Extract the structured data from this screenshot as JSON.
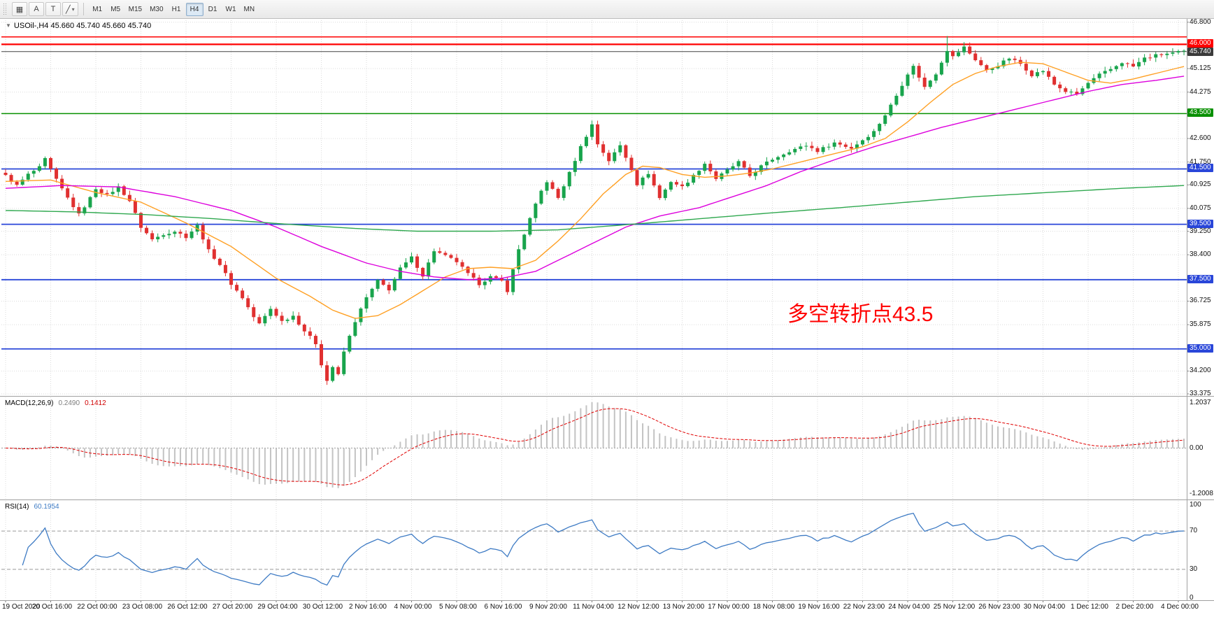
{
  "toolbar": {
    "tools": [
      {
        "id": "charts",
        "glyph": "▦"
      },
      {
        "id": "cursor",
        "glyph": "A"
      },
      {
        "id": "text",
        "glyph": "T"
      },
      {
        "id": "shapes",
        "glyph": "╱",
        "caret": "▾"
      }
    ],
    "timeframes": [
      "M1",
      "M5",
      "M15",
      "M30",
      "H1",
      "H4",
      "D1",
      "W1",
      "MN"
    ],
    "active_timeframe": "H4"
  },
  "main_chart": {
    "collapse_icon": "▼",
    "title_text": "USOil-,H4 45.660 45.740 45.660 45.740",
    "bid_label": "45.740",
    "annotation": {
      "text": "多空转折点43.5",
      "color": "#FF0000"
    }
  },
  "macd_panel": {
    "name": "MACD(12,26,9)",
    "value_main": "0.2490",
    "value_signal": "0.1412",
    "axis": [
      "1.2037",
      "0.00",
      "-1.2008"
    ]
  },
  "rsi_panel": {
    "name": "RSI(14)",
    "value": "60.1954",
    "axis": [
      "100",
      "70",
      "30",
      "0"
    ],
    "levels": [
      70,
      30
    ]
  },
  "time_axis": [
    "19 Oct 2020",
    "20 Oct 16:00",
    "22 Oct 00:00",
    "23 Oct 08:00",
    "26 Oct 12:00",
    "27 Oct 20:00",
    "29 Oct 04:00",
    "30 Oct 12:00",
    "2 Nov 16:00",
    "4 Nov 00:00",
    "5 Nov 08:00",
    "6 Nov 16:00",
    "9 Nov 20:00",
    "11 Nov 04:00",
    "12 Nov 12:00",
    "13 Nov 20:00",
    "17 Nov 00:00",
    "18 Nov 08:00",
    "19 Nov 16:00",
    "22 Nov 23:00",
    "24 Nov 04:00",
    "25 Nov 12:00",
    "26 Nov 23:00",
    "30 Nov 04:00",
    "1 Dec 12:00",
    "2 Dec 20:00",
    "4 Dec 00:00"
  ],
  "chart_data": {
    "type": "candlestick",
    "title": "USOil-,H4",
    "symbol": "USOil-",
    "timeframe": "H4",
    "ohlc_current": {
      "open": 45.66,
      "high": 45.74,
      "low": 45.66,
      "close": 45.74
    },
    "bars": 210,
    "ylim": [
      33.3,
      46.92
    ],
    "bid_price": 45.74,
    "price_gridlines": [
      "46.800",
      "45.125",
      "44.275",
      "42.600",
      "41.750",
      "40.925",
      "40.075",
      "39.250",
      "38.400",
      "36.725",
      "35.875",
      "34.200",
      "33.375"
    ],
    "hlines": [
      {
        "price": 46.27,
        "color": "#FF0000",
        "width": 1.5,
        "label": null
      },
      {
        "price": 46.0,
        "color": "#FF0000",
        "width": 2.2,
        "label": "46.000"
      },
      {
        "price": 43.5,
        "color": "#089000",
        "width": 1.5,
        "label": "43.500"
      },
      {
        "price": 41.5,
        "color": "#2946D9",
        "width": 1.8,
        "label": "41.500"
      },
      {
        "price": 39.5,
        "color": "#2946D9",
        "width": 1.8,
        "label": "39.500"
      },
      {
        "price": 37.5,
        "color": "#2946D9",
        "width": 1.8,
        "label": "37.500"
      },
      {
        "price": 35.0,
        "color": "#2946D9",
        "width": 1.8,
        "label": "35.000"
      }
    ],
    "close_anchors": [
      [
        0,
        41.25
      ],
      [
        2,
        40.9
      ],
      [
        4,
        41.3
      ],
      [
        6,
        41.55
      ],
      [
        7,
        41.85
      ],
      [
        9,
        41.1
      ],
      [
        11,
        40.45
      ],
      [
        13,
        39.85
      ],
      [
        15,
        40.45
      ],
      [
        16,
        40.8
      ],
      [
        18,
        40.55
      ],
      [
        20,
        40.85
      ],
      [
        22,
        40.35
      ],
      [
        24,
        39.4
      ],
      [
        26,
        38.95
      ],
      [
        28,
        39.15
      ],
      [
        30,
        39.25
      ],
      [
        32,
        39.05
      ],
      [
        34,
        39.45
      ],
      [
        36,
        38.55
      ],
      [
        38,
        38.05
      ],
      [
        40,
        37.35
      ],
      [
        42,
        36.85
      ],
      [
        44,
        36.15
      ],
      [
        45,
        35.9
      ],
      [
        47,
        36.45
      ],
      [
        49,
        36.0
      ],
      [
        51,
        36.2
      ],
      [
        53,
        35.65
      ],
      [
        55,
        35.2
      ],
      [
        56,
        34.45
      ],
      [
        57,
        33.85
      ],
      [
        58,
        34.35
      ],
      [
        59,
        34.05
      ],
      [
        60,
        34.9
      ],
      [
        62,
        36.0
      ],
      [
        64,
        36.85
      ],
      [
        66,
        37.45
      ],
      [
        68,
        37.15
      ],
      [
        70,
        37.9
      ],
      [
        72,
        38.3
      ],
      [
        74,
        37.65
      ],
      [
        76,
        38.55
      ],
      [
        78,
        38.35
      ],
      [
        80,
        38.15
      ],
      [
        82,
        37.7
      ],
      [
        84,
        37.35
      ],
      [
        86,
        37.6
      ],
      [
        88,
        37.45
      ],
      [
        89,
        37.1
      ],
      [
        91,
        38.6
      ],
      [
        93,
        39.7
      ],
      [
        95,
        40.7
      ],
      [
        96,
        41.05
      ],
      [
        98,
        40.45
      ],
      [
        100,
        41.35
      ],
      [
        102,
        42.3
      ],
      [
        104,
        43.1
      ],
      [
        105,
        42.4
      ],
      [
        107,
        41.8
      ],
      [
        109,
        42.35
      ],
      [
        111,
        41.5
      ],
      [
        112,
        40.95
      ],
      [
        114,
        41.35
      ],
      [
        116,
        40.45
      ],
      [
        118,
        41.05
      ],
      [
        120,
        40.85
      ],
      [
        122,
        41.25
      ],
      [
        124,
        41.7
      ],
      [
        126,
        41.15
      ],
      [
        128,
        41.45
      ],
      [
        130,
        41.75
      ],
      [
        132,
        41.25
      ],
      [
        134,
        41.6
      ],
      [
        136,
        41.85
      ],
      [
        139,
        42.15
      ],
      [
        142,
        42.35
      ],
      [
        144,
        42.15
      ],
      [
        147,
        42.45
      ],
      [
        150,
        42.25
      ],
      [
        152,
        42.55
      ],
      [
        154,
        42.85
      ],
      [
        156,
        43.45
      ],
      [
        158,
        44.15
      ],
      [
        160,
        44.95
      ],
      [
        161,
        45.2
      ],
      [
        163,
        44.45
      ],
      [
        165,
        44.95
      ],
      [
        167,
        45.8
      ],
      [
        168,
        45.55
      ],
      [
        170,
        45.9
      ],
      [
        172,
        45.45
      ],
      [
        174,
        45.05
      ],
      [
        176,
        45.25
      ],
      [
        178,
        45.5
      ],
      [
        180,
        45.3
      ],
      [
        182,
        44.9
      ],
      [
        184,
        45.05
      ],
      [
        186,
        44.55
      ],
      [
        188,
        44.3
      ],
      [
        190,
        44.2
      ],
      [
        192,
        44.6
      ],
      [
        194,
        44.9
      ],
      [
        196,
        45.1
      ],
      [
        198,
        45.35
      ],
      [
        200,
        45.2
      ],
      [
        202,
        45.5
      ],
      [
        204,
        45.6
      ],
      [
        206,
        45.66
      ],
      [
        209,
        45.74
      ]
    ],
    "spike_highs": [
      [
        7,
        41.95
      ],
      [
        104,
        43.25
      ],
      [
        161,
        45.3
      ],
      [
        167,
        46.3
      ],
      [
        170,
        46.05
      ]
    ],
    "spike_lows": [
      [
        57,
        33.7
      ],
      [
        89,
        36.95
      ]
    ],
    "ma_lines": [
      {
        "name": "ma-fast-orange",
        "color": "#FFA024",
        "anchors": [
          [
            0,
            41.05
          ],
          [
            8,
            41.1
          ],
          [
            16,
            40.65
          ],
          [
            24,
            40.3
          ],
          [
            32,
            39.55
          ],
          [
            40,
            38.7
          ],
          [
            48,
            37.55
          ],
          [
            54,
            36.9
          ],
          [
            58,
            36.4
          ],
          [
            62,
            36.1
          ],
          [
            66,
            36.2
          ],
          [
            70,
            36.6
          ],
          [
            74,
            37.1
          ],
          [
            78,
            37.6
          ],
          [
            82,
            37.9
          ],
          [
            86,
            37.95
          ],
          [
            90,
            37.9
          ],
          [
            94,
            38.2
          ],
          [
            98,
            38.9
          ],
          [
            102,
            39.7
          ],
          [
            106,
            40.6
          ],
          [
            110,
            41.3
          ],
          [
            113,
            41.6
          ],
          [
            116,
            41.55
          ],
          [
            120,
            41.3
          ],
          [
            124,
            41.2
          ],
          [
            128,
            41.25
          ],
          [
            132,
            41.35
          ],
          [
            136,
            41.5
          ],
          [
            140,
            41.7
          ],
          [
            144,
            41.9
          ],
          [
            148,
            42.1
          ],
          [
            152,
            42.3
          ],
          [
            156,
            42.6
          ],
          [
            160,
            43.2
          ],
          [
            164,
            43.9
          ],
          [
            168,
            44.55
          ],
          [
            172,
            44.95
          ],
          [
            176,
            45.2
          ],
          [
            180,
            45.35
          ],
          [
            184,
            45.3
          ],
          [
            188,
            45.0
          ],
          [
            192,
            44.7
          ],
          [
            196,
            44.6
          ],
          [
            200,
            44.75
          ],
          [
            204,
            44.95
          ],
          [
            207,
            45.1
          ],
          [
            209,
            45.2
          ]
        ]
      },
      {
        "name": "ma-mid-magenta",
        "color": "#DD00DD",
        "anchors": [
          [
            0,
            40.8
          ],
          [
            10,
            40.9
          ],
          [
            20,
            40.85
          ],
          [
            30,
            40.5
          ],
          [
            40,
            40.0
          ],
          [
            48,
            39.4
          ],
          [
            56,
            38.7
          ],
          [
            64,
            38.1
          ],
          [
            70,
            37.8
          ],
          [
            76,
            37.6
          ],
          [
            82,
            37.5
          ],
          [
            88,
            37.55
          ],
          [
            94,
            37.8
          ],
          [
            98,
            38.2
          ],
          [
            104,
            38.8
          ],
          [
            110,
            39.4
          ],
          [
            116,
            39.8
          ],
          [
            123,
            40.1
          ],
          [
            129,
            40.5
          ],
          [
            135,
            40.9
          ],
          [
            141,
            41.4
          ],
          [
            148,
            41.9
          ],
          [
            154,
            42.3
          ],
          [
            160,
            42.65
          ],
          [
            166,
            43.0
          ],
          [
            172,
            43.3
          ],
          [
            179,
            43.65
          ],
          [
            185,
            43.95
          ],
          [
            192,
            44.3
          ],
          [
            198,
            44.55
          ],
          [
            204,
            44.7
          ],
          [
            209,
            44.85
          ]
        ]
      },
      {
        "name": "ma-slow-green",
        "color": "#2FA84F",
        "anchors": [
          [
            0,
            40.0
          ],
          [
            12,
            39.95
          ],
          [
            25,
            39.85
          ],
          [
            37,
            39.7
          ],
          [
            50,
            39.5
          ],
          [
            62,
            39.35
          ],
          [
            73,
            39.25
          ],
          [
            86,
            39.25
          ],
          [
            98,
            39.3
          ],
          [
            111,
            39.5
          ],
          [
            123,
            39.7
          ],
          [
            135,
            39.9
          ],
          [
            148,
            40.1
          ],
          [
            160,
            40.3
          ],
          [
            172,
            40.5
          ],
          [
            185,
            40.65
          ],
          [
            198,
            40.8
          ],
          [
            209,
            40.9
          ]
        ]
      }
    ],
    "colors": {
      "up": "#18A44C",
      "down": "#E03030",
      "macd_hist": "#C3C3C3",
      "macd_signal": "#E00000",
      "rsi": "#3E7BC4",
      "grid": "#DBDBDB"
    },
    "macd": {
      "fast": 12,
      "slow": 26,
      "signal": 9,
      "axis_max": 1.2037,
      "axis_min": -1.2008
    },
    "rsi": {
      "period": 14
    }
  }
}
